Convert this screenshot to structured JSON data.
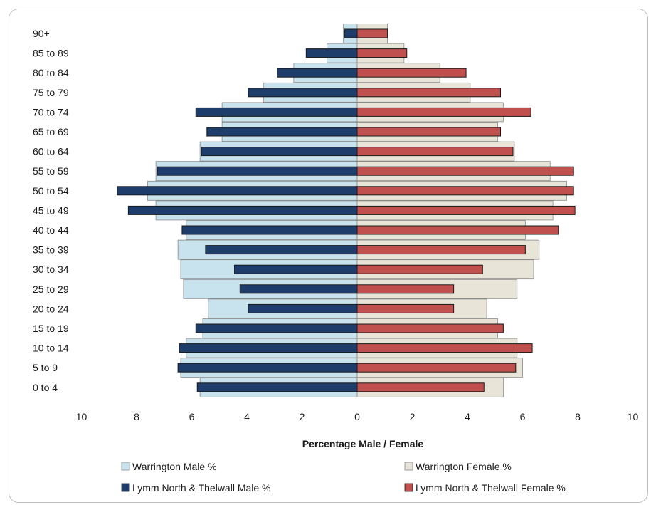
{
  "chart_data": {
    "type": "bar",
    "orientation": "horizontal-population-pyramid",
    "xlabel": "Percentage Male / Female",
    "xlim": [
      -10,
      10
    ],
    "x_ticks": [
      "10",
      "8",
      "6",
      "4",
      "2",
      "0",
      "2",
      "4",
      "6",
      "8",
      "10"
    ],
    "grid": false,
    "legend_position": "bottom",
    "categories": [
      "90+",
      "85 to 89",
      "80 to 84",
      "75 to 79",
      "70 to 74",
      "65 to 69",
      "60 to 64",
      "55 to 59",
      "50 to 54",
      "45 to 49",
      "40 to 44",
      "35 to 39",
      "30 to 34",
      "25 to 29",
      "20 to 24",
      "15 to 19",
      "10 to 14",
      "5 to 9",
      "0 to 4"
    ],
    "series": [
      {
        "name": "Warrington Male %",
        "side": "male",
        "color": "#c9e3ee",
        "values": [
          0.5,
          1.1,
          2.3,
          3.4,
          4.9,
          4.9,
          5.7,
          7.3,
          7.6,
          7.3,
          6.2,
          6.5,
          6.4,
          6.3,
          5.4,
          5.6,
          6.2,
          6.4,
          5.7
        ]
      },
      {
        "name": "Warrington Female %",
        "side": "female",
        "color": "#e8e5d8",
        "values": [
          1.1,
          1.7,
          3.0,
          4.1,
          5.3,
          5.1,
          5.7,
          7.0,
          7.6,
          7.1,
          6.1,
          6.6,
          6.4,
          5.8,
          4.7,
          5.1,
          5.8,
          6.0,
          5.3
        ]
      },
      {
        "name": "Lymm North & Thelwall Male %",
        "side": "male",
        "color": "#1f3d6b",
        "values": [
          0.45,
          1.85,
          2.9,
          3.95,
          5.85,
          5.45,
          5.65,
          7.25,
          8.7,
          8.3,
          6.35,
          5.5,
          4.45,
          4.25,
          3.95,
          5.85,
          6.45,
          6.5,
          5.8
        ]
      },
      {
        "name": "Lymm North & Thelwall Female %",
        "side": "female",
        "color": "#c0504d",
        "values": [
          1.1,
          1.8,
          3.95,
          5.2,
          6.3,
          5.2,
          5.65,
          7.85,
          7.85,
          7.9,
          7.3,
          6.1,
          4.55,
          3.5,
          3.5,
          5.3,
          6.35,
          5.75,
          4.6
        ]
      }
    ]
  }
}
